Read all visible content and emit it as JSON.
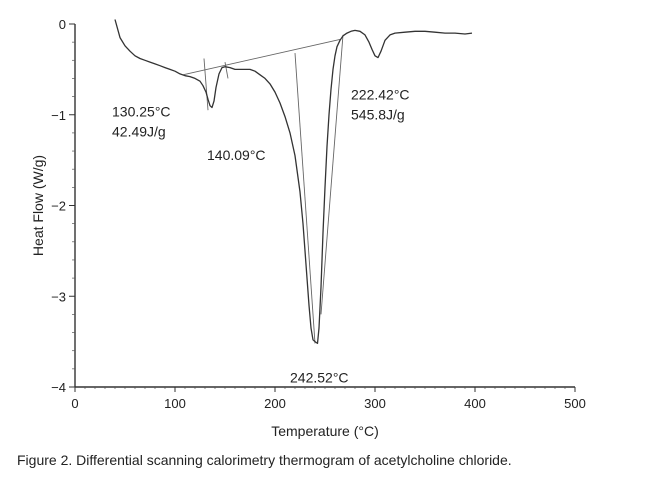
{
  "caption": "Figure 2. Differential scanning calorimetry thermogram of acetylcholine chloride.",
  "chart_data": {
    "type": "line",
    "xlabel": "Temperature (°C)",
    "ylabel": "Heat Flow (W/g)",
    "xlim": [
      0,
      500
    ],
    "ylim": [
      -4,
      0
    ],
    "xticks": [
      0,
      100,
      200,
      300,
      400,
      500
    ],
    "xtick_labels": [
      "0",
      "100",
      "200",
      "300",
      "400",
      "500"
    ],
    "yticks": [
      0,
      -1,
      -2,
      -3,
      -4
    ],
    "ytick_labels": [
      "0",
      "−1",
      "−2",
      "−3",
      "−4"
    ],
    "grid": false,
    "legend": "none",
    "series": [
      {
        "x": [
          40,
          45,
          50,
          55,
          60,
          65,
          70,
          75,
          80,
          85,
          90,
          95,
          100,
          105,
          110,
          115,
          120,
          125,
          128,
          131,
          133,
          135,
          137,
          139,
          141,
          144,
          147,
          150,
          155,
          160,
          165,
          170,
          175,
          180,
          185,
          190,
          195,
          200,
          205,
          210,
          215,
          220,
          225,
          228,
          231,
          234,
          236,
          238,
          240,
          242.5,
          244,
          246,
          248,
          250,
          252,
          254,
          256,
          258,
          260,
          262,
          265,
          268,
          272,
          276,
          280,
          285,
          290,
          294,
          297,
          300,
          303,
          306,
          310,
          315,
          320,
          330,
          340,
          350,
          360,
          370,
          380,
          390,
          397
        ],
        "y": [
          0.05,
          -0.15,
          -0.24,
          -0.3,
          -0.35,
          -0.38,
          -0.4,
          -0.42,
          -0.44,
          -0.46,
          -0.48,
          -0.5,
          -0.52,
          -0.55,
          -0.57,
          -0.58,
          -0.6,
          -0.63,
          -0.68,
          -0.75,
          -0.83,
          -0.9,
          -0.92,
          -0.85,
          -0.7,
          -0.55,
          -0.48,
          -0.47,
          -0.48,
          -0.5,
          -0.5,
          -0.5,
          -0.5,
          -0.52,
          -0.56,
          -0.6,
          -0.66,
          -0.75,
          -0.87,
          -1.02,
          -1.2,
          -1.45,
          -1.85,
          -2.2,
          -2.65,
          -3.1,
          -3.35,
          -3.48,
          -3.5,
          -3.52,
          -3.35,
          -2.9,
          -2.3,
          -1.8,
          -1.35,
          -1.0,
          -0.72,
          -0.5,
          -0.35,
          -0.25,
          -0.18,
          -0.13,
          -0.1,
          -0.08,
          -0.07,
          -0.08,
          -0.12,
          -0.2,
          -0.28,
          -0.35,
          -0.37,
          -0.3,
          -0.18,
          -0.12,
          -0.1,
          -0.09,
          -0.08,
          -0.08,
          -0.09,
          -0.1,
          -0.1,
          -0.11,
          -0.1
        ]
      }
    ],
    "baselines": [
      {
        "x": [
          108,
          265
        ],
        "y": [
          -0.56,
          -0.17
        ]
      },
      {
        "x": [
          129,
          133
        ],
        "y": [
          -0.38,
          -0.95
        ]
      },
      {
        "x": [
          150,
          153
        ],
        "y": [
          -0.42,
          -0.6
        ]
      },
      {
        "x": [
          220,
          240
        ],
        "y": [
          -0.32,
          -3.52
        ]
      },
      {
        "x": [
          246,
          268
        ],
        "y": [
          -3.2,
          -0.12
        ]
      }
    ],
    "annotations": [
      {
        "lines": [
          "130.25°C",
          "42.49J/g"
        ],
        "x": 37,
        "y": -1.02
      },
      {
        "lines": [
          "140.09°C"
        ],
        "x": 132,
        "y": -1.5
      },
      {
        "lines": [
          "222.42°C",
          "545.8J/g"
        ],
        "x": 276,
        "y": -0.83
      },
      {
        "lines": [
          "242.52°C"
        ],
        "x": 215,
        "y": -3.95
      }
    ]
  }
}
